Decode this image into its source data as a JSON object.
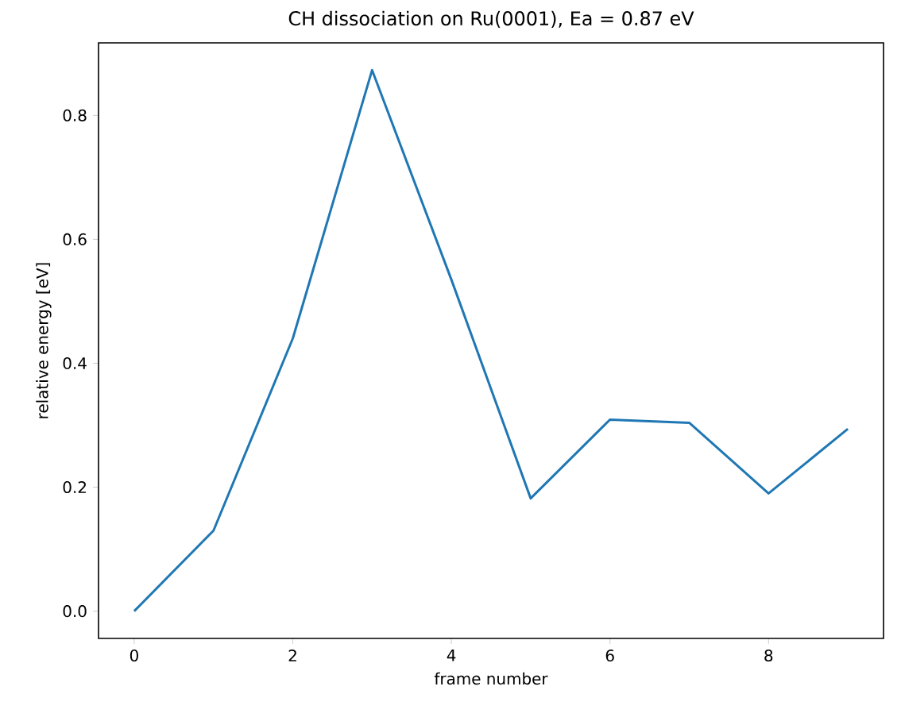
{
  "chart_data": {
    "type": "line",
    "title": "CH dissociation on Ru(0001), Ea = 0.87 eV",
    "xlabel": "frame number",
    "ylabel": "relative energy [eV]",
    "x": [
      0,
      1,
      2,
      3,
      4,
      5,
      6,
      7,
      8,
      9
    ],
    "series": [
      {
        "color": "#1f77b4",
        "values": [
          0.0,
          0.13,
          0.44,
          0.873,
          0.535,
          0.182,
          0.309,
          0.304,
          0.19,
          0.294
        ]
      }
    ],
    "xlim": [
      -0.45,
      9.45
    ],
    "ylim": [
      -0.044,
      0.917
    ],
    "xticks": [
      0,
      2,
      4,
      6,
      8
    ],
    "yticks": [
      {
        "value": 0,
        "label": "0.0"
      },
      0.2,
      0.4,
      0.6,
      0.8
    ],
    "grid": false,
    "marker": "none",
    "line_style": "solid"
  }
}
